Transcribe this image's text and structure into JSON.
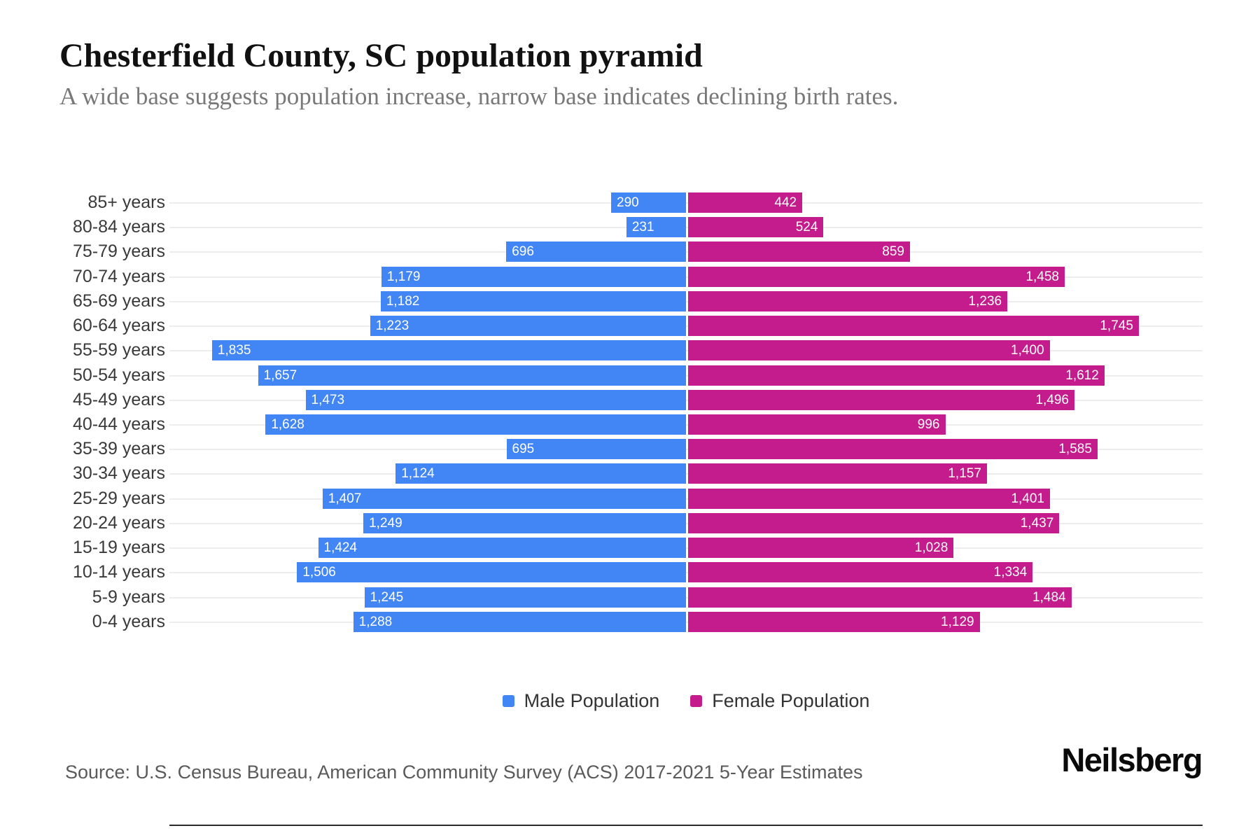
{
  "header": {
    "title": "Chesterfield County, SC population pyramid",
    "subtitle": "A wide base suggests population increase, narrow base indicates declining birth rates."
  },
  "chart_data": {
    "type": "bar",
    "variant": "population-pyramid",
    "orientation": "horizontal",
    "categories": [
      "85+ years",
      "80-84 years",
      "75-79 years",
      "70-74 years",
      "65-69 years",
      "60-64 years",
      "55-59 years",
      "50-54 years",
      "45-49 years",
      "40-44 years",
      "35-39 years",
      "30-34 years",
      "25-29 years",
      "20-24 years",
      "15-19 years",
      "10-14 years",
      "5-9 years",
      "0-4 years"
    ],
    "series": [
      {
        "name": "Male Population",
        "side": "left",
        "color": "#4285F4",
        "values": [
          290,
          231,
          696,
          1179,
          1182,
          1223,
          1835,
          1657,
          1473,
          1628,
          695,
          1124,
          1407,
          1249,
          1424,
          1506,
          1245,
          1288
        ]
      },
      {
        "name": "Female Population",
        "side": "right",
        "color": "#C41B8D",
        "values": [
          442,
          524,
          859,
          1458,
          1236,
          1745,
          1400,
          1612,
          1496,
          996,
          1585,
          1157,
          1401,
          1437,
          1028,
          1334,
          1484,
          1129
        ]
      }
    ],
    "xlim": [
      -2000,
      2000
    ],
    "xlabel": "",
    "ylabel": "",
    "grid": true,
    "gridline_color": "#ededed",
    "axis_line_color": "#2b2b2b",
    "value_labels": "inside bar ends, white, comma thousands",
    "legend_position": "bottom-center"
  },
  "legend": {
    "male_label": "Male Population",
    "female_label": "Female Population"
  },
  "footer": {
    "source": "Source: U.S. Census Bureau, American Community Survey (ACS) 2017-2021 5-Year Estimates",
    "brand": "Neilsberg"
  }
}
